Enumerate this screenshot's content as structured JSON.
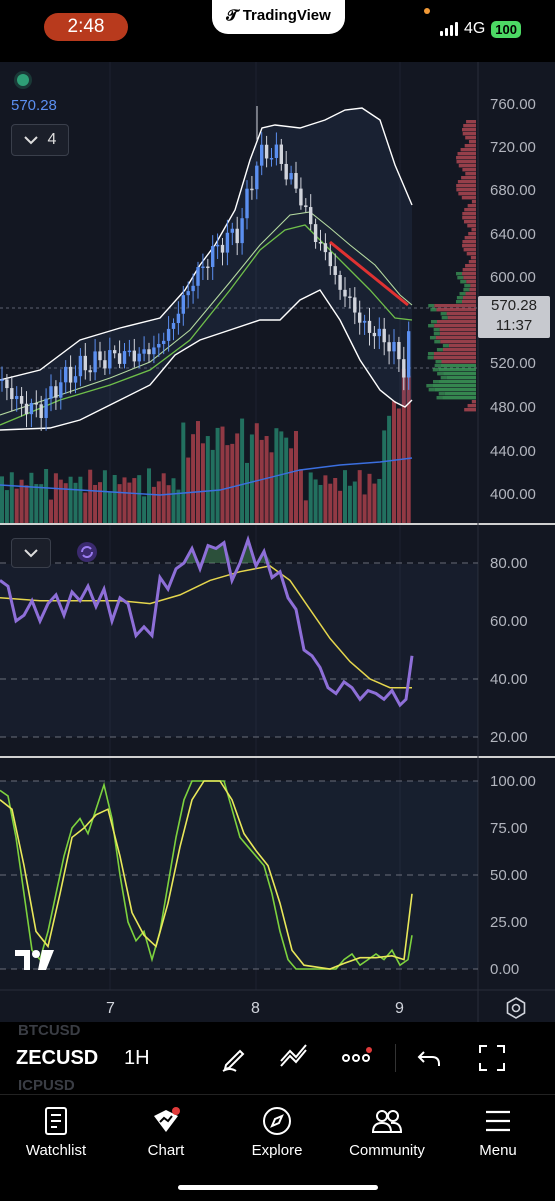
{
  "status_bar": {
    "time": "2:48",
    "app_badge": "TradingView",
    "network": "4G",
    "battery": "100"
  },
  "legend": {
    "price": "570.28",
    "collapse_count": "4"
  },
  "price_axis": {
    "labels": [
      "760.00",
      "720.00",
      "680.00",
      "640.00",
      "600.00",
      "520.00",
      "480.00",
      "440.00",
      "400.00"
    ]
  },
  "last_price": {
    "value": "570.28",
    "countdown": "11:37"
  },
  "rsi_axis": {
    "labels": [
      "80.00",
      "60.00",
      "40.00",
      "20.00"
    ]
  },
  "stoch_axis": {
    "labels": [
      "100.00",
      "75.00",
      "50.00",
      "25.00",
      "0.00"
    ]
  },
  "time_axis": {
    "labels": [
      "7",
      "8",
      "9"
    ]
  },
  "toolbar": {
    "symbol": "ZECUSD",
    "interval": "1H",
    "ghost_top": "BTCUSD",
    "ghost_bottom": "ICPUSD"
  },
  "nav": {
    "watchlist": "Watchlist",
    "chart": "Chart",
    "explore": "Explore",
    "community": "Community",
    "menu": "Menu"
  },
  "colors": {
    "up": "#5b8ff0",
    "down": "#d1d4dc",
    "vol_up": "#26806a",
    "vol_down": "#c0454a",
    "rsi": "#8e6fd8",
    "rsi_ma": "#e5d64d",
    "stoch_k": "#7dd23e",
    "stoch_d": "#e9e85a",
    "bb": "#ffffff",
    "ema": "#6fbf4a"
  },
  "chart_data": [
    {
      "type": "candlestick",
      "title": "ZECUSD 1H",
      "y_axis": [
        400,
        760
      ],
      "last": 570.28,
      "overlays": [
        "Bollinger Bands",
        "EMA",
        "Volume",
        "Volume Profile"
      ]
    },
    {
      "type": "line",
      "title": "RSI",
      "y_axis": [
        20,
        80
      ]
    },
    {
      "type": "line",
      "title": "Stochastic",
      "y_axis": [
        0,
        100
      ]
    }
  ]
}
